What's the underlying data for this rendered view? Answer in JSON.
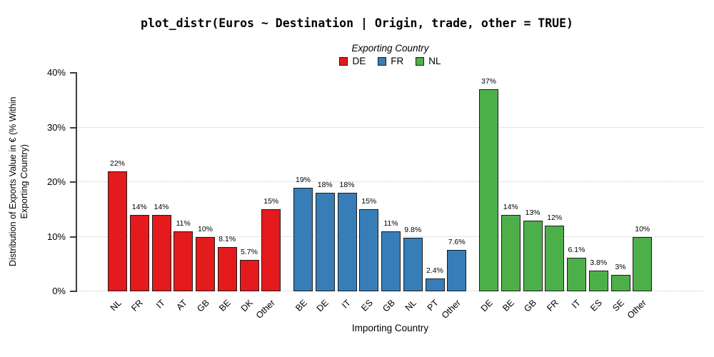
{
  "title": "plot_distr(Euros ~ Destination | Origin, trade, other = TRUE)",
  "legend": {
    "title": "Exporting Country"
  },
  "axes": {
    "x_title": "Importing Country",
    "y_title_line1": "Distribution of Exports Value in € (% Within",
    "y_title_line2": "Exporting Country)"
  },
  "chart_data": {
    "type": "bar",
    "title": "plot_distr(Euros ~ Destination | Origin, trade, other = TRUE)",
    "xlabel": "Importing Country",
    "ylabel": "Distribution of Exports Value in € (% Within Exporting Country)",
    "ylim": [
      0,
      40
    ],
    "y_ticks": [
      {
        "value": 0,
        "label": "0%"
      },
      {
        "value": 10,
        "label": "10%"
      },
      {
        "value": 20,
        "label": "20%"
      },
      {
        "value": 30,
        "label": "30%"
      },
      {
        "value": 40,
        "label": "40%"
      }
    ],
    "gridlines": [
      0,
      10,
      20,
      30
    ],
    "grid_style": "dotted horizontal",
    "legend_position": "top",
    "legend_title": "Exporting Country",
    "series": [
      {
        "name": "DE",
        "color": "#e41a1c",
        "categories": [
          "NL",
          "FR",
          "IT",
          "AT",
          "GB",
          "BE",
          "DK",
          "Other"
        ],
        "values": [
          22,
          14,
          14,
          11,
          10,
          8.1,
          5.7,
          15
        ],
        "labels": [
          "22%",
          "14%",
          "14%",
          "11%",
          "10%",
          "8.1%",
          "5.7%",
          "15%"
        ]
      },
      {
        "name": "FR",
        "color": "#377eb8",
        "categories": [
          "BE",
          "DE",
          "IT",
          "ES",
          "GB",
          "NL",
          "PT",
          "Other"
        ],
        "values": [
          19,
          18,
          18,
          15,
          11,
          9.8,
          2.4,
          7.6
        ],
        "labels": [
          "19%",
          "18%",
          "18%",
          "15%",
          "11%",
          "9.8%",
          "2.4%",
          "7.6%"
        ]
      },
      {
        "name": "NL",
        "color": "#4daf4a",
        "categories": [
          "DE",
          "BE",
          "GB",
          "FR",
          "IT",
          "ES",
          "SE",
          "Other"
        ],
        "values": [
          37,
          14,
          13,
          12,
          6.1,
          3.8,
          3,
          10
        ],
        "labels": [
          "37%",
          "14%",
          "13%",
          "12%",
          "6.1%",
          "3.8%",
          "3%",
          "10%"
        ]
      }
    ]
  }
}
